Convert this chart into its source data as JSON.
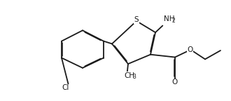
{
  "bg": "#ffffff",
  "lc": "#1a1a1a",
  "lw": 1.3,
  "fs": 7.5,
  "sfs": 5.5,
  "fw": 3.3,
  "fh": 1.44,
  "dpi": 100,
  "xlim": [
    0.2,
    9.8
  ],
  "ylim": [
    0.3,
    4.3
  ]
}
